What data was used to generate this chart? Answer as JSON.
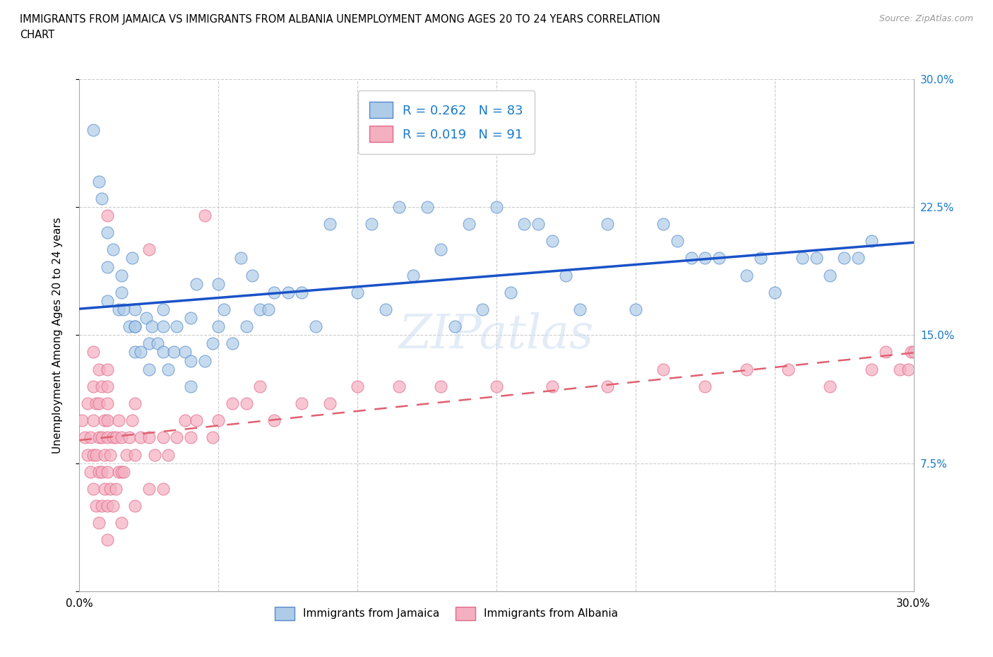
{
  "title_line1": "IMMIGRANTS FROM JAMAICA VS IMMIGRANTS FROM ALBANIA UNEMPLOYMENT AMONG AGES 20 TO 24 YEARS CORRELATION",
  "title_line2": "CHART",
  "source_text": "Source: ZipAtlas.com",
  "ylabel": "Unemployment Among Ages 20 to 24 years",
  "jamaica_color": "#aecce8",
  "albania_color": "#f4afc0",
  "jamaica_edge_color": "#5588cc",
  "albania_edge_color": "#e06888",
  "jamaica_line_color": "#1a52c8",
  "albania_line_color": "#e06070",
  "legend_value_color": "#1a7acc",
  "jamaica_R": 0.262,
  "jamaica_N": 83,
  "albania_R": 0.019,
  "albania_N": 91,
  "jamaica_scatter_x": [
    0.005,
    0.007,
    0.008,
    0.01,
    0.01,
    0.01,
    0.012,
    0.014,
    0.015,
    0.015,
    0.016,
    0.018,
    0.019,
    0.02,
    0.02,
    0.02,
    0.02,
    0.022,
    0.024,
    0.025,
    0.025,
    0.026,
    0.028,
    0.03,
    0.03,
    0.03,
    0.032,
    0.034,
    0.035,
    0.038,
    0.04,
    0.04,
    0.04,
    0.042,
    0.045,
    0.048,
    0.05,
    0.05,
    0.052,
    0.055,
    0.058,
    0.06,
    0.062,
    0.065,
    0.068,
    0.07,
    0.075,
    0.08,
    0.085,
    0.09,
    0.1,
    0.105,
    0.11,
    0.115,
    0.12,
    0.125,
    0.13,
    0.135,
    0.14,
    0.145,
    0.15,
    0.155,
    0.16,
    0.165,
    0.17,
    0.175,
    0.18,
    0.19,
    0.2,
    0.21,
    0.215,
    0.22,
    0.225,
    0.23,
    0.24,
    0.245,
    0.25,
    0.26,
    0.265,
    0.27,
    0.275,
    0.28,
    0.285
  ],
  "jamaica_scatter_y": [
    0.27,
    0.24,
    0.23,
    0.21,
    0.19,
    0.17,
    0.2,
    0.165,
    0.185,
    0.175,
    0.165,
    0.155,
    0.195,
    0.155,
    0.14,
    0.155,
    0.165,
    0.14,
    0.16,
    0.13,
    0.145,
    0.155,
    0.145,
    0.14,
    0.155,
    0.165,
    0.13,
    0.14,
    0.155,
    0.14,
    0.12,
    0.135,
    0.16,
    0.18,
    0.135,
    0.145,
    0.18,
    0.155,
    0.165,
    0.145,
    0.195,
    0.155,
    0.185,
    0.165,
    0.165,
    0.175,
    0.175,
    0.175,
    0.155,
    0.215,
    0.175,
    0.215,
    0.165,
    0.225,
    0.185,
    0.225,
    0.2,
    0.155,
    0.215,
    0.165,
    0.225,
    0.175,
    0.215,
    0.215,
    0.205,
    0.185,
    0.165,
    0.215,
    0.165,
    0.215,
    0.205,
    0.195,
    0.195,
    0.195,
    0.185,
    0.195,
    0.175,
    0.195,
    0.195,
    0.185,
    0.195,
    0.195,
    0.205
  ],
  "albania_scatter_x": [
    0.001,
    0.002,
    0.003,
    0.003,
    0.004,
    0.004,
    0.005,
    0.005,
    0.005,
    0.005,
    0.005,
    0.006,
    0.006,
    0.006,
    0.007,
    0.007,
    0.007,
    0.007,
    0.007,
    0.008,
    0.008,
    0.008,
    0.008,
    0.009,
    0.009,
    0.009,
    0.01,
    0.01,
    0.01,
    0.01,
    0.01,
    0.01,
    0.01,
    0.01,
    0.01,
    0.011,
    0.011,
    0.012,
    0.012,
    0.013,
    0.013,
    0.014,
    0.014,
    0.015,
    0.015,
    0.015,
    0.016,
    0.017,
    0.018,
    0.019,
    0.02,
    0.02,
    0.02,
    0.022,
    0.025,
    0.025,
    0.025,
    0.027,
    0.03,
    0.03,
    0.032,
    0.035,
    0.038,
    0.04,
    0.042,
    0.045,
    0.048,
    0.05,
    0.055,
    0.06,
    0.065,
    0.07,
    0.08,
    0.09,
    0.1,
    0.115,
    0.13,
    0.15,
    0.17,
    0.19,
    0.21,
    0.225,
    0.24,
    0.255,
    0.27,
    0.285,
    0.29,
    0.295,
    0.298,
    0.299,
    0.3
  ],
  "albania_scatter_y": [
    0.1,
    0.09,
    0.08,
    0.11,
    0.07,
    0.09,
    0.06,
    0.08,
    0.1,
    0.12,
    0.14,
    0.05,
    0.08,
    0.11,
    0.04,
    0.07,
    0.09,
    0.11,
    0.13,
    0.05,
    0.07,
    0.09,
    0.12,
    0.06,
    0.08,
    0.1,
    0.03,
    0.05,
    0.07,
    0.09,
    0.1,
    0.11,
    0.12,
    0.13,
    0.22,
    0.06,
    0.08,
    0.05,
    0.09,
    0.06,
    0.09,
    0.07,
    0.1,
    0.04,
    0.07,
    0.09,
    0.07,
    0.08,
    0.09,
    0.1,
    0.05,
    0.08,
    0.11,
    0.09,
    0.06,
    0.09,
    0.2,
    0.08,
    0.06,
    0.09,
    0.08,
    0.09,
    0.1,
    0.09,
    0.1,
    0.22,
    0.09,
    0.1,
    0.11,
    0.11,
    0.12,
    0.1,
    0.11,
    0.11,
    0.12,
    0.12,
    0.12,
    0.12,
    0.12,
    0.12,
    0.13,
    0.12,
    0.13,
    0.13,
    0.12,
    0.13,
    0.14,
    0.13,
    0.13,
    0.14,
    0.14
  ]
}
